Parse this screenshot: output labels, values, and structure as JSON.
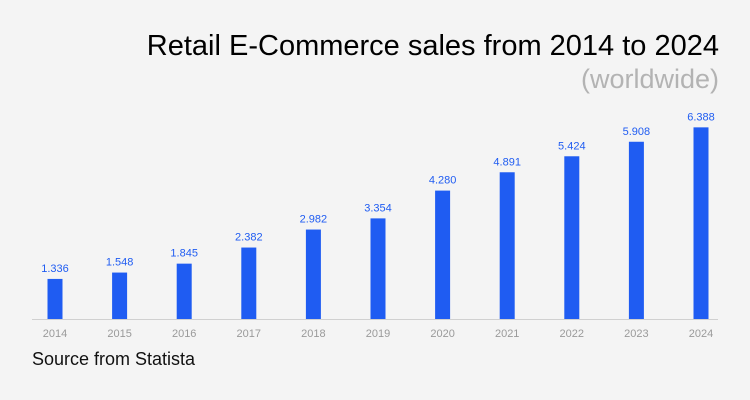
{
  "chart_data": {
    "type": "bar",
    "title": "Retail E-Commerce sales from 2014 to 2024",
    "subtitle": "(worldwide)",
    "source": "Source from Statista",
    "categories": [
      "2014",
      "2015",
      "2016",
      "2017",
      "2018",
      "2019",
      "2020",
      "2021",
      "2022",
      "2023",
      "2024"
    ],
    "values": [
      1.336,
      1.548,
      1.845,
      2.382,
      2.982,
      3.354,
      4.28,
      4.891,
      5.424,
      5.908,
      6.388
    ],
    "value_labels": [
      "1.336",
      "1.548",
      "1.845",
      "2.382",
      "2.982",
      "3.354",
      "4.280",
      "4.891",
      "5.424",
      "5.908",
      "6.388"
    ],
    "xlabel": "",
    "ylabel": "",
    "ylim": [
      0,
      6.5
    ],
    "grid": false,
    "legend": "none",
    "colors": {
      "bar": "#1f5cf2",
      "value_label": "#1f5cf2",
      "tick_label": "#9a9a9a",
      "axis": "#d0d0d0",
      "background": "#f4f4f4",
      "subtitle": "#b3b3b3"
    }
  }
}
